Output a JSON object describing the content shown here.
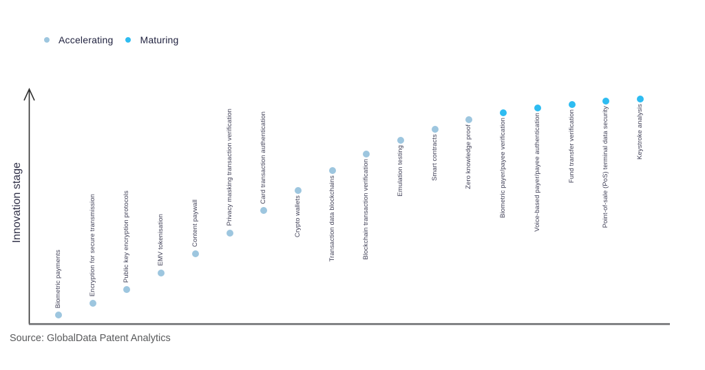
{
  "legend": {
    "items": [
      {
        "label": "Accelerating",
        "color": "#9dc6df"
      },
      {
        "label": "Maturing",
        "color": "#2ebcf1"
      }
    ]
  },
  "y_axis": {
    "label": "Innovation stage"
  },
  "source": {
    "text": "Source: GlobalData Patent Analytics"
  },
  "chart_data": {
    "type": "scatter",
    "title": "",
    "xlabel": "",
    "ylabel": "Innovation stage",
    "grid": false,
    "legend_position": "top-left",
    "y_axis_scale": "unlabeled ordinal innovation-stage score, 0 (bottom) to 1 (top), upward arrow axis",
    "stages": [
      {
        "name": "Accelerating",
        "color": "#9dc6df"
      },
      {
        "name": "Maturing",
        "color": "#2ebcf1"
      }
    ],
    "points": [
      {
        "label": "Biometric payments",
        "stage": "Accelerating",
        "score": 0.04
      },
      {
        "label": "Encryption for secure transmission",
        "stage": "Accelerating",
        "score": 0.09
      },
      {
        "label": "Public key encryption protocols",
        "stage": "Accelerating",
        "score": 0.15
      },
      {
        "label": "EMV tokenisation",
        "stage": "Accelerating",
        "score": 0.22
      },
      {
        "label": "Content paywall",
        "stage": "Accelerating",
        "score": 0.3
      },
      {
        "label": "Privacy masking transaction verification",
        "stage": "Accelerating",
        "score": 0.39
      },
      {
        "label": "Card transaction authentication",
        "stage": "Accelerating",
        "score": 0.485
      },
      {
        "label": "Crypto wallets",
        "stage": "Accelerating",
        "score": 0.57
      },
      {
        "label": "Transaction data blockchains",
        "stage": "Accelerating",
        "score": 0.655
      },
      {
        "label": "Blockchain transaction verification",
        "stage": "Accelerating",
        "score": 0.725
      },
      {
        "label": "Emulation testing",
        "stage": "Accelerating",
        "score": 0.785
      },
      {
        "label": "Smart contracts",
        "stage": "Accelerating",
        "score": 0.83
      },
      {
        "label": "Zero knowledge proof",
        "stage": "Accelerating",
        "score": 0.87
      },
      {
        "label": "Biometric payer/payee verification",
        "stage": "Maturing",
        "score": 0.9
      },
      {
        "label": "Voice-based payer/payee authentication",
        "stage": "Maturing",
        "score": 0.92
      },
      {
        "label": "Fund transfer verification",
        "stage": "Maturing",
        "score": 0.935
      },
      {
        "label": "Point-of-sale (PoS) terminal data security",
        "stage": "Maturing",
        "score": 0.95
      },
      {
        "label": "Keystroke analysis",
        "stage": "Maturing",
        "score": 0.96
      }
    ]
  }
}
